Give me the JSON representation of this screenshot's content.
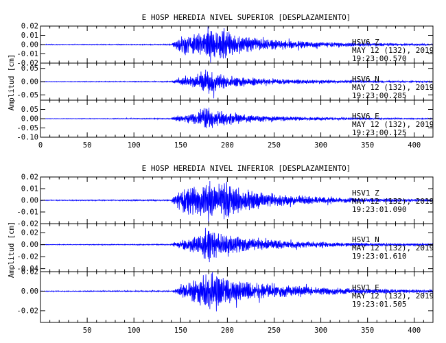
{
  "chart_data": [
    {
      "type": "line",
      "title": "E HOSP HEREDIA NIVEL SUPERIOR [DESPLAZAMIENTO]",
      "ylabel": "Amplitud [cm]",
      "x_ticks": [
        "0",
        "50",
        "100",
        "150",
        "200",
        "250",
        "300",
        "350",
        "400"
      ],
      "xlim": [
        0,
        420
      ],
      "grid": false,
      "line_color": "#0000ff",
      "series": [
        {
          "station": "HSV6",
          "component": "Z",
          "date": "MAY 12 (132), 2019",
          "time": "19:23:00.570",
          "ylim": [
            -0.02,
            0.02
          ],
          "y_ticks": [
            "0.02",
            "0.01",
            "0.00",
            "-0.01",
            "-0.02"
          ],
          "envelope": {
            "times": [
              0,
              140,
              144,
              150,
              160,
              172,
              180,
              190,
              195,
              205,
              220,
              240,
              260,
              300,
              340,
              380,
              420
            ],
            "amplitudes": [
              0.0004,
              0.0006,
              0.004,
              0.009,
              0.012,
              0.013,
              0.016,
              0.015,
              0.019,
              0.012,
              0.009,
              0.006,
              0.005,
              0.003,
              0.002,
              0.0015,
              0.001
            ]
          }
        },
        {
          "station": "HSV6",
          "component": "N",
          "date": "MAY 12 (132), 2019",
          "time": "19:23:00.285",
          "ylim": [
            -0.07,
            0.07
          ],
          "y_ticks": [
            "0.05",
            "0.00",
            "-0.05"
          ],
          "envelope": {
            "times": [
              0,
              140,
              146,
              160,
              172,
              178,
              184,
              195,
              210,
              230,
              260,
              300,
              340,
              380,
              420
            ],
            "amplitudes": [
              0.001,
              0.002,
              0.01,
              0.02,
              0.04,
              0.058,
              0.045,
              0.03,
              0.022,
              0.015,
              0.01,
              0.007,
              0.005,
              0.004,
              0.003
            ]
          }
        },
        {
          "station": "HSV6",
          "component": "E",
          "date": "MAY 12 (132), 2019",
          "time": "19:23:00.125",
          "ylim": [
            -0.1,
            0.1
          ],
          "y_ticks": [
            "0.05",
            "0.00",
            "-0.05",
            "-0.10"
          ],
          "envelope": {
            "times": [
              0,
              140,
              146,
              160,
              172,
              178,
              186,
              200,
              215,
              240,
              270,
              300,
              340,
              380,
              420
            ],
            "amplitudes": [
              0.001,
              0.003,
              0.015,
              0.03,
              0.055,
              0.075,
              0.05,
              0.035,
              0.025,
              0.016,
              0.012,
              0.009,
              0.006,
              0.004,
              0.003
            ]
          }
        }
      ]
    },
    {
      "type": "line",
      "title": "E HOSP HEREDIA NIVEL INFERIOR [DESPLAZAMIENTO]",
      "ylabel": "Amplitud [cm]",
      "x_ticks": [
        "50",
        "100",
        "150",
        "200",
        "250",
        "300",
        "350",
        "400"
      ],
      "xlim": [
        0,
        420
      ],
      "grid": false,
      "line_color": "#0000ff",
      "series": [
        {
          "station": "HSV1",
          "component": "Z",
          "date": "MAY 12 (132), 2019",
          "time": "19:23:01.090",
          "ylim": [
            -0.02,
            0.02
          ],
          "y_ticks": [
            "0.02",
            "0.01",
            "0.00",
            "-0.01",
            "-0.02"
          ],
          "envelope": {
            "times": [
              0,
              140,
              144,
              150,
              160,
              172,
              180,
              190,
              195,
              205,
              220,
              240,
              260,
              300,
              340,
              380,
              420
            ],
            "amplitudes": [
              0.0004,
              0.0006,
              0.005,
              0.01,
              0.013,
              0.014,
              0.017,
              0.016,
              0.02,
              0.013,
              0.01,
              0.007,
              0.005,
              0.003,
              0.002,
              0.0015,
              0.001
            ]
          }
        },
        {
          "station": "HSV1",
          "component": "N",
          "date": "MAY 12 (132), 2019",
          "time": "19:23:01.610",
          "ylim": [
            -0.045,
            0.035
          ],
          "y_ticks": [
            "0.02",
            "0.00",
            "-0.02",
            "-0.04"
          ],
          "envelope": {
            "times": [
              0,
              140,
              146,
              160,
              172,
              178,
              184,
              195,
              210,
              230,
              260,
              300,
              340,
              380,
              420
            ],
            "amplitudes": [
              0.0005,
              0.001,
              0.006,
              0.012,
              0.022,
              0.036,
              0.026,
              0.018,
              0.014,
              0.01,
              0.007,
              0.005,
              0.003,
              0.0025,
              0.002
            ]
          }
        },
        {
          "station": "HSV1",
          "component": "E",
          "date": "MAY 12 (132), 2019",
          "time": "19:23:01.505",
          "ylim": [
            -0.032,
            0.02
          ],
          "y_ticks": [
            "0.02",
            "0.00",
            "-0.02"
          ],
          "envelope": {
            "times": [
              0,
              140,
              146,
              160,
              172,
              180,
              190,
              200,
              215,
              240,
              270,
              300,
              340,
              380,
              420
            ],
            "amplitudes": [
              0.0004,
              0.0008,
              0.004,
              0.01,
              0.016,
              0.02,
              0.018,
              0.014,
              0.011,
              0.008,
              0.006,
              0.004,
              0.003,
              0.002,
              0.0015
            ]
          }
        }
      ]
    }
  ]
}
